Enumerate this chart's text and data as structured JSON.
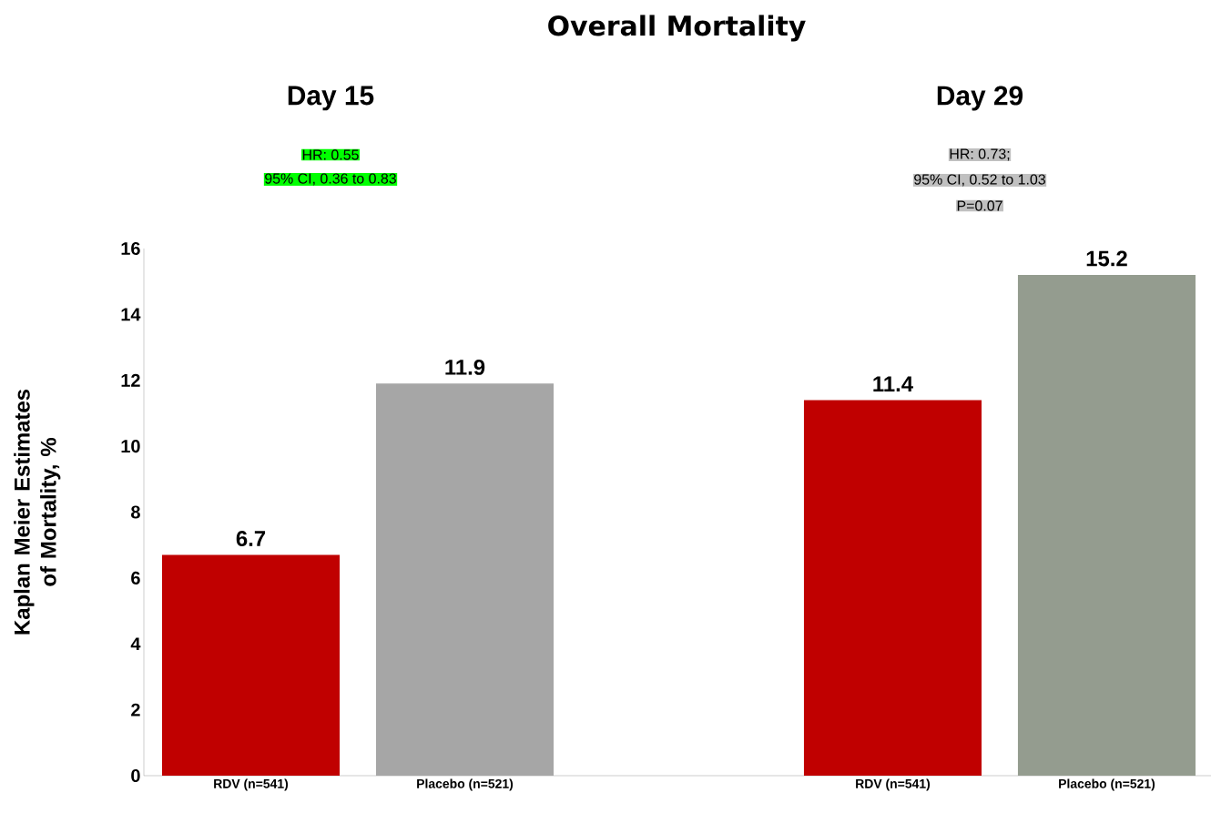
{
  "chart_data": {
    "type": "bar",
    "title": "Overall Mortality",
    "ylabel": "Kaplan Meier Estimates of Mortality, %",
    "categories": [
      "RDV (n=541)",
      "Placebo (n=521)",
      null,
      "RDV (n=541)",
      "Placebo (n=521)"
    ],
    "values": [
      6.7,
      11.9,
      null,
      11.4,
      15.2
    ],
    "colors": [
      "#c00000",
      "#a6a6a6",
      null,
      "#c00000",
      "#949c8f"
    ],
    "ylim": [
      0,
      16
    ],
    "yticks": [
      0,
      2,
      4,
      6,
      8,
      10,
      12,
      14,
      16
    ],
    "data_labels": true,
    "grid": false,
    "legend": false,
    "annotations": [
      "Day 15",
      "Day 29",
      "HR: 0.55",
      "95% CI, 0.36 to 0.83",
      "HR: 0.73;",
      "95% CI, 0.52 to 1.03",
      "P=0.07"
    ]
  }
}
